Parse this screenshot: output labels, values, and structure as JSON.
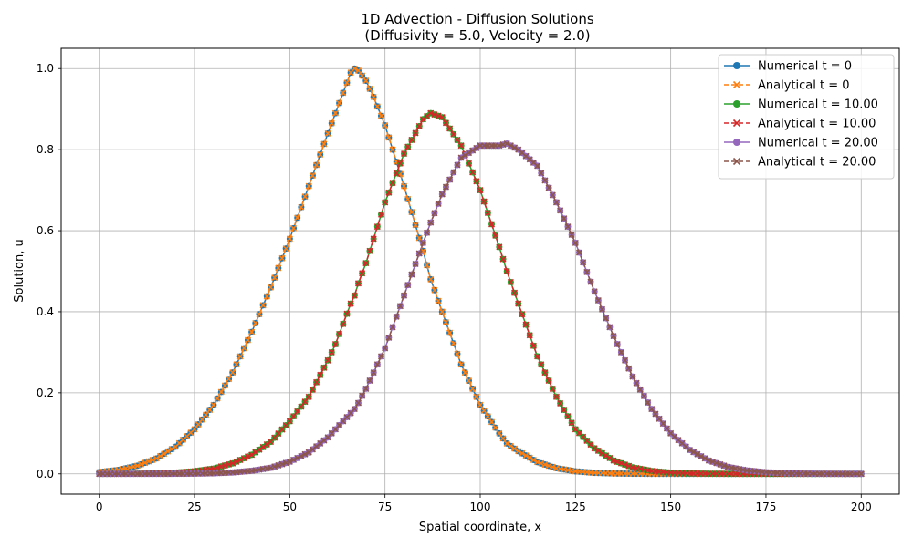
{
  "chart_data": {
    "type": "line",
    "title": "1D Advection - Diffusion Solutions",
    "subtitle": "(Diffusivity = 5.0, Velocity = 2.0)",
    "xlabel": "Spatial coordinate, x",
    "ylabel": "Solution, u",
    "xlim": [
      -10,
      210
    ],
    "ylim": [
      -0.05,
      1.05
    ],
    "xticks": [
      "0",
      "25",
      "50",
      "75",
      "100",
      "125",
      "150",
      "175",
      "200"
    ],
    "yticks": [
      "0.0",
      "0.2",
      "0.4",
      "0.6",
      "0.8",
      "1.0"
    ],
    "grid": true,
    "legend_position": "top-right",
    "x": [
      0,
      5,
      10,
      15,
      20,
      25,
      30,
      35,
      40,
      45,
      50,
      55,
      60,
      62,
      64,
      66,
      67,
      68,
      70,
      72,
      75,
      80,
      85,
      87,
      90,
      95,
      100,
      105,
      107,
      110,
      115,
      120,
      125,
      130,
      135,
      140,
      145,
      150,
      155,
      160,
      165,
      170,
      175,
      180,
      185,
      190,
      195,
      200
    ],
    "series": [
      {
        "name": "Numerical t = 0",
        "color": "#1f77b4",
        "marker": "circle",
        "dash": "solid",
        "values": [
          0.0043,
          0.0097,
          0.02,
          0.038,
          0.067,
          0.11,
          0.17,
          0.25,
          0.35,
          0.46,
          0.58,
          0.71,
          0.84,
          0.89,
          0.94,
          0.99,
          1.0,
          0.995,
          0.97,
          0.93,
          0.86,
          0.71,
          0.55,
          0.48,
          0.4,
          0.27,
          0.17,
          0.1,
          0.075,
          0.056,
          0.029,
          0.014,
          0.0063,
          0.0026,
          0.001,
          0.0004,
          0.0001,
          0.0,
          0.0,
          0.0,
          0.0,
          0.0,
          0.0,
          0.0,
          0.0,
          0.0,
          0.0,
          0.0
        ]
      },
      {
        "name": "Analytical t = 0",
        "color": "#ff7f0e",
        "marker": "x",
        "dash": "dashed",
        "values": [
          0.0043,
          0.0097,
          0.02,
          0.038,
          0.067,
          0.11,
          0.17,
          0.25,
          0.35,
          0.46,
          0.58,
          0.71,
          0.84,
          0.89,
          0.94,
          0.99,
          1.0,
          0.995,
          0.97,
          0.93,
          0.86,
          0.71,
          0.55,
          0.48,
          0.4,
          0.27,
          0.17,
          0.1,
          0.075,
          0.056,
          0.029,
          0.014,
          0.0063,
          0.0026,
          0.001,
          0.0004,
          0.0001,
          0.0,
          0.0,
          0.0,
          0.0,
          0.0,
          0.0,
          0.0,
          0.0,
          0.0,
          0.0,
          0.0
        ]
      },
      {
        "name": "Numerical t = 10.00",
        "color": "#2ca02c",
        "marker": "circle",
        "dash": "solid",
        "values": [
          0.0,
          0.0002,
          0.0005,
          0.0013,
          0.003,
          0.0065,
          0.013,
          0.026,
          0.047,
          0.079,
          0.13,
          0.19,
          0.28,
          0.32,
          0.37,
          0.42,
          0.44,
          0.47,
          0.52,
          0.58,
          0.67,
          0.79,
          0.875,
          0.89,
          0.88,
          0.81,
          0.7,
          0.56,
          0.5,
          0.42,
          0.29,
          0.19,
          0.11,
          0.063,
          0.033,
          0.016,
          0.0072,
          0.003,
          0.0012,
          0.0004,
          0.0001,
          0.0,
          0.0,
          0.0,
          0.0,
          0.0,
          0.0,
          0.0
        ]
      },
      {
        "name": "Analytical t = 10.00",
        "color": "#d62728",
        "marker": "x",
        "dash": "dashed",
        "values": [
          0.0,
          0.0002,
          0.0005,
          0.0013,
          0.003,
          0.0065,
          0.013,
          0.026,
          0.047,
          0.079,
          0.13,
          0.19,
          0.28,
          0.32,
          0.37,
          0.42,
          0.44,
          0.47,
          0.52,
          0.58,
          0.67,
          0.79,
          0.875,
          0.89,
          0.88,
          0.81,
          0.7,
          0.56,
          0.5,
          0.42,
          0.29,
          0.19,
          0.11,
          0.063,
          0.033,
          0.016,
          0.0072,
          0.003,
          0.0012,
          0.0004,
          0.0001,
          0.0,
          0.0,
          0.0,
          0.0,
          0.0,
          0.0,
          0.0
        ]
      },
      {
        "name": "Numerical t = 20.00",
        "color": "#9467bd",
        "marker": "circle",
        "dash": "solid",
        "values": [
          0.0,
          0.0,
          0.0,
          0.0,
          0.0002,
          0.0006,
          0.0015,
          0.0035,
          0.0076,
          0.015,
          0.03,
          0.053,
          0.09,
          0.11,
          0.13,
          0.15,
          0.16,
          0.175,
          0.21,
          0.25,
          0.31,
          0.44,
          0.57,
          0.62,
          0.69,
          0.78,
          0.81,
          0.81,
          0.815,
          0.8,
          0.76,
          0.67,
          0.57,
          0.45,
          0.34,
          0.24,
          0.16,
          0.1,
          0.059,
          0.033,
          0.017,
          0.0085,
          0.004,
          0.0017,
          0.0007,
          0.0003,
          0.0001,
          0.0
        ]
      },
      {
        "name": "Analytical t = 20.00",
        "color": "#8c564b",
        "marker": "x",
        "dash": "dashed",
        "values": [
          0.0,
          0.0,
          0.0,
          0.0,
          0.0002,
          0.0006,
          0.0015,
          0.0035,
          0.0076,
          0.015,
          0.03,
          0.053,
          0.09,
          0.11,
          0.13,
          0.15,
          0.16,
          0.175,
          0.21,
          0.25,
          0.31,
          0.44,
          0.57,
          0.62,
          0.69,
          0.78,
          0.81,
          0.81,
          0.815,
          0.8,
          0.76,
          0.67,
          0.57,
          0.45,
          0.34,
          0.24,
          0.16,
          0.1,
          0.059,
          0.033,
          0.017,
          0.0085,
          0.004,
          0.0017,
          0.0007,
          0.0003,
          0.0001,
          0.0
        ]
      }
    ]
  }
}
